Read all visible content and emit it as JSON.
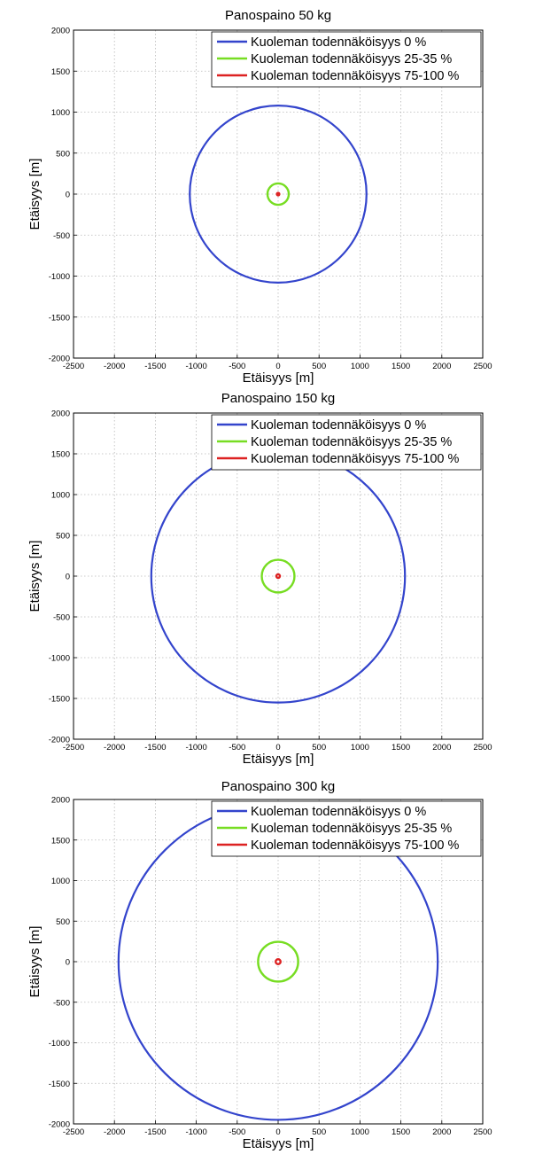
{
  "chart_data": [
    {
      "type": "line",
      "title": "Panospaino 50 kg",
      "xlabel": "Etäisyys [m]",
      "ylabel": "Etäisyys [m]",
      "xlim": [
        -2500,
        2500
      ],
      "ylim": [
        -2000,
        2000
      ],
      "xticks": [
        -2500,
        -2000,
        -1500,
        -1000,
        -500,
        0,
        500,
        1000,
        1500,
        2000,
        2500
      ],
      "yticks": [
        2000,
        1500,
        1000,
        500,
        0,
        -500,
        -1000,
        -1500,
        -2000
      ],
      "grid": true,
      "legend_position": "top-right",
      "series": [
        {
          "name": "Kuoleman todennäköisyys 0 %",
          "color": "#3344cc",
          "radius": 1080
        },
        {
          "name": "Kuoleman todennäköisyys 25-35 %",
          "color": "#77dd22",
          "radius": 130
        },
        {
          "name": "Kuoleman todennäköisyys 75-100 %",
          "color": "#dd2222",
          "radius": 15
        }
      ]
    },
    {
      "type": "line",
      "title": "Panospaino 150 kg",
      "xlabel": "Etäisyys [m]",
      "ylabel": "Etäisyys [m]",
      "xlim": [
        -2500,
        2500
      ],
      "ylim": [
        -2000,
        2000
      ],
      "xticks": [
        -2500,
        -2000,
        -1500,
        -1000,
        -500,
        0,
        500,
        1000,
        1500,
        2000,
        2500
      ],
      "yticks": [
        2000,
        1500,
        1000,
        500,
        0,
        -500,
        -1000,
        -1500,
        -2000
      ],
      "grid": true,
      "legend_position": "top-right",
      "series": [
        {
          "name": "Kuoleman todennäköisyys 0 %",
          "color": "#3344cc",
          "radius": 1550
        },
        {
          "name": "Kuoleman todennäköisyys 25-35 %",
          "color": "#77dd22",
          "radius": 200
        },
        {
          "name": "Kuoleman todennäköisyys 75-100 %",
          "color": "#dd2222",
          "radius": 22
        }
      ]
    },
    {
      "type": "line",
      "title": "Panospaino 300 kg",
      "xlabel": "Etäisyys [m]",
      "ylabel": "Etäisyys [m]",
      "xlim": [
        -2500,
        2500
      ],
      "ylim": [
        -2000,
        2000
      ],
      "xticks": [
        -2500,
        -2000,
        -1500,
        -1000,
        -500,
        0,
        500,
        1000,
        1500,
        2000,
        2500
      ],
      "yticks": [
        2000,
        1500,
        1000,
        500,
        0,
        -500,
        -1000,
        -1500,
        -2000
      ],
      "grid": true,
      "legend_position": "top-right",
      "series": [
        {
          "name": "Kuoleman todennäköisyys 0 %",
          "color": "#3344cc",
          "radius": 1950
        },
        {
          "name": "Kuoleman todennäköisyys 25-35 %",
          "color": "#77dd22",
          "radius": 245
        },
        {
          "name": "Kuoleman todennäköisyys 75-100 %",
          "color": "#dd2222",
          "radius": 30
        }
      ]
    }
  ]
}
